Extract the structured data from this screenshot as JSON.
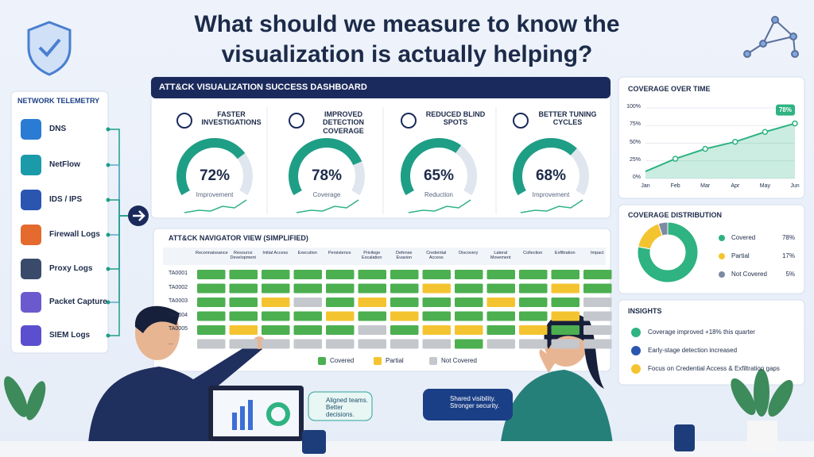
{
  "title": "What should we measure to know the visualization is actually helping?",
  "telemetry": {
    "heading": "NETWORK TELEMETRY",
    "items": [
      "DNS",
      "NetFlow",
      "IDS / IPS",
      "Firewall Logs",
      "Proxy Logs",
      "Packet Capture",
      "SIEM Logs"
    ]
  },
  "dashboard": {
    "title": "ATT&CK VISUALIZATION SUCCESS DASHBOARD",
    "gauge_color": "#1f9e86",
    "kpis": [
      {
        "label": "FASTER INVESTIGATIONS",
        "value": 72,
        "value_label": "72%",
        "caption": "Improvement"
      },
      {
        "label": "IMPROVED DETECTION COVERAGE",
        "value": 78,
        "value_label": "78%",
        "caption": "Coverage"
      },
      {
        "label": "REDUCED BLIND SPOTS",
        "value": 65,
        "value_label": "65%",
        "caption": "Reduction"
      },
      {
        "label": "BETTER TUNING CYCLES",
        "value": 68,
        "value_label": "68%",
        "caption": "Improvement"
      }
    ]
  },
  "navigator": {
    "title": "ATT&CK NAVIGATOR VIEW (SIMPLIFIED)",
    "columns": [
      "Reconnaissance",
      "Resource Development",
      "Initial Access",
      "Execution",
      "Persistence",
      "Privilege Escalation",
      "Defense Evasion",
      "Credential Access",
      "Discovery",
      "Lateral Movement",
      "Collection",
      "Exfiltration",
      "Impact"
    ],
    "rows": [
      "TA0001",
      "TA0002",
      "TA0003",
      "TA0004",
      "TA0005",
      "..."
    ],
    "legend": [
      {
        "name": "Covered",
        "color": "#4caf50"
      },
      {
        "name": "Partial",
        "color": "#f4c430"
      },
      {
        "name": "Not Covered",
        "color": "#c4c7cc"
      }
    ],
    "cells": [
      [
        0,
        0,
        0,
        0,
        0,
        0,
        0,
        0,
        0,
        0,
        0,
        0,
        0
      ],
      [
        0,
        0,
        0,
        0,
        0,
        0,
        0,
        1,
        0,
        0,
        0,
        1,
        0
      ],
      [
        0,
        0,
        1,
        2,
        0,
        1,
        0,
        0,
        0,
        1,
        0,
        0,
        2
      ],
      [
        0,
        0,
        0,
        0,
        1,
        0,
        1,
        0,
        0,
        0,
        0,
        1,
        2
      ],
      [
        0,
        1,
        0,
        0,
        0,
        2,
        0,
        1,
        1,
        0,
        1,
        0,
        2
      ],
      [
        2,
        2,
        2,
        2,
        2,
        2,
        2,
        2,
        0,
        2,
        2,
        2,
        2
      ]
    ]
  },
  "chart_data": [
    {
      "type": "line",
      "title": "COVERAGE OVER TIME",
      "categories": [
        "Jan",
        "Feb",
        "Mar",
        "Apr",
        "May",
        "Jun"
      ],
      "values": [
        10,
        28,
        42,
        52,
        66,
        78
      ],
      "value_labels": [
        null,
        null,
        null,
        null,
        null,
        "78%"
      ],
      "color": "#2fb383",
      "ylim": [
        0,
        100
      ],
      "yticks": [
        {
          "value": 0,
          "label": "0%"
        },
        {
          "value": 25,
          "label": "25%"
        },
        {
          "value": 50,
          "label": "50%"
        },
        {
          "value": 75,
          "label": "75%"
        },
        {
          "value": 100,
          "label": "100%"
        }
      ]
    },
    {
      "type": "pie",
      "title": "COVERAGE DISTRIBUTION",
      "categories": [
        "Covered",
        "Partial",
        "Not Covered"
      ],
      "values": [
        78,
        17,
        5
      ],
      "value_labels": [
        "78%",
        "17%",
        "5%"
      ],
      "colors": [
        "#2fb383",
        "#f4c430",
        "#7d8aa3"
      ]
    }
  ],
  "insights": {
    "heading": "INSIGHTS",
    "items": [
      "Coverage improved +18% this quarter",
      "Early-stage detection increased",
      "Focus on Credential Access & Exfiltration gaps"
    ]
  },
  "bubbles": [
    "Aligned teams. Better decisions.",
    "Shared visibility. Stronger security."
  ]
}
